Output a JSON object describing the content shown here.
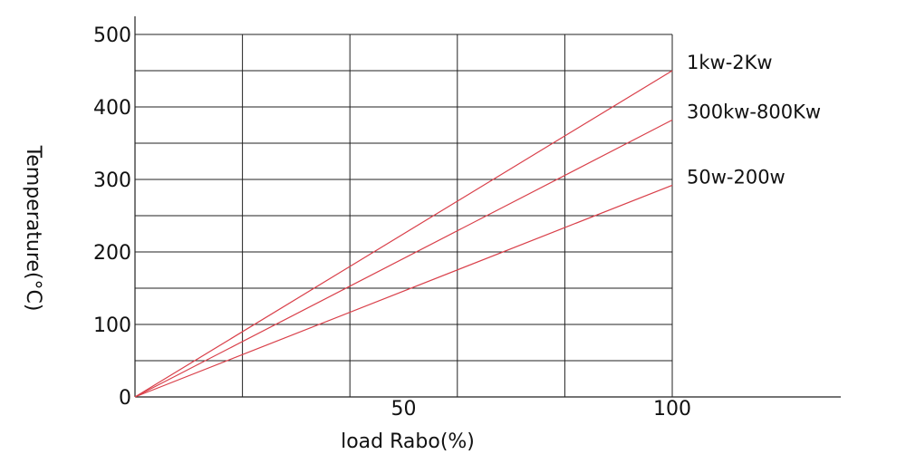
{
  "chart_data": {
    "type": "line",
    "title": "",
    "xlabel": "load Rabo(%)",
    "ylabel": "Temperature(°C)",
    "xlim": [
      0,
      130
    ],
    "ylim": [
      0,
      500
    ],
    "x_ticks": [
      {
        "value": 50,
        "label": "50"
      },
      {
        "value": 100,
        "label": "100"
      }
    ],
    "x_grid": [
      20,
      40,
      60,
      80,
      100
    ],
    "y_ticks": [
      {
        "value": 0,
        "label": "0"
      },
      {
        "value": 100,
        "label": "100"
      },
      {
        "value": 200,
        "label": "200"
      },
      {
        "value": 300,
        "label": "300"
      },
      {
        "value": 400,
        "label": "400"
      },
      {
        "value": 500,
        "label": "500"
      }
    ],
    "y_grid": [
      50,
      100,
      150,
      200,
      250,
      300,
      350,
      400,
      450,
      500
    ],
    "grid": true,
    "legend": "labels at right end of each line",
    "line_color": "#d9404a",
    "series": [
      {
        "name": "1kw-2Kw",
        "x": [
          0,
          100
        ],
        "y": [
          0,
          450
        ]
      },
      {
        "name": "300kw-800Kw",
        "x": [
          0,
          100
        ],
        "y": [
          0,
          382
        ]
      },
      {
        "name": "50w-200w",
        "x": [
          0,
          100
        ],
        "y": [
          0,
          292
        ]
      }
    ]
  }
}
